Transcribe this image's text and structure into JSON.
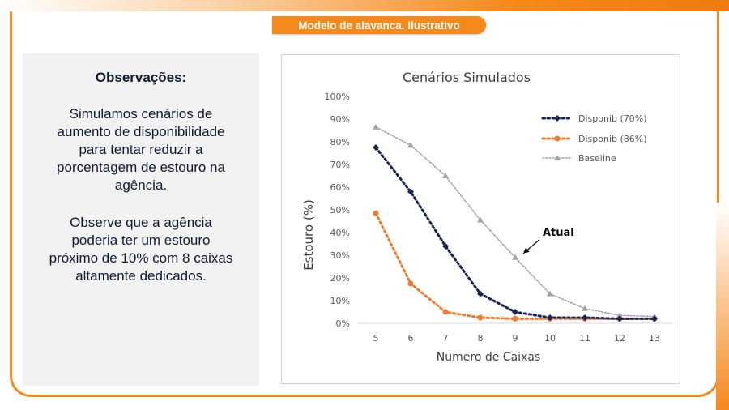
{
  "header": {
    "title": "Modelo de alavanca. Ilustrativo"
  },
  "observations": {
    "title": "Observações:",
    "paragraph1": [
      "Simulamos cenários de",
      "aumento de disponibilidade",
      "para tentar reduzir a",
      "porcentagem de estouro na",
      "agência."
    ],
    "paragraph2": [
      "Observe que a agência",
      "poderia ter um estouro",
      "próximo de 10% com 8 caixas",
      "altamente dedicados."
    ]
  },
  "chart_data": {
    "type": "line",
    "title": "Cenários Simulados",
    "xlabel": "Numero de Caixas",
    "ylabel": "Estouro (%)",
    "x": [
      5,
      6,
      7,
      8,
      9,
      10,
      11,
      12,
      13
    ],
    "yticks": [
      "0%",
      "10%",
      "20%",
      "30%",
      "40%",
      "50%",
      "60%",
      "70%",
      "80%",
      "90%",
      "100%"
    ],
    "ylim": [
      0,
      100
    ],
    "grid": false,
    "legend_position": "top-right",
    "series": [
      {
        "name": "Disponib (70%)",
        "color": "#1a2456",
        "marker": "diamond",
        "style": "dotted",
        "values": [
          77.5,
          58,
          34,
          13,
          5,
          2.5,
          2.5,
          2,
          2
        ]
      },
      {
        "name": "Disponib (86%)",
        "color": "#ed7d31",
        "marker": "circle",
        "style": "dotted",
        "values": [
          48.5,
          17.5,
          5,
          2.5,
          2,
          2,
          2,
          2,
          2
        ]
      },
      {
        "name": "Baseline",
        "color": "#a5a5a5",
        "marker": "triangle",
        "style": "dotted",
        "values": [
          86.5,
          78.5,
          65,
          45.5,
          29,
          13,
          6.5,
          3.5,
          3
        ]
      }
    ],
    "annotations": [
      {
        "text": "Atual",
        "x": 9,
        "y": 29
      }
    ]
  }
}
